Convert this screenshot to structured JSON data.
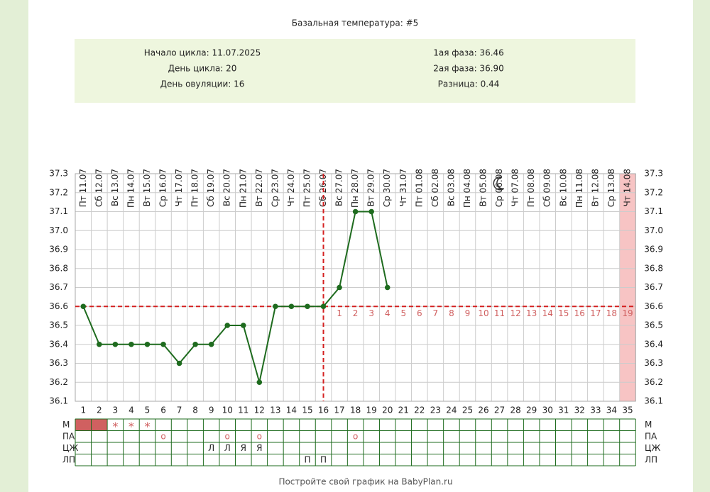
{
  "chart_data": {
    "type": "line",
    "title": "Базальная температура: #5",
    "summary_left": [
      "Начало цикла: 11.07.2025",
      "День цикла: 20",
      "День овуляции: 16"
    ],
    "summary_right": [
      "1ая фаза: 36.46",
      "2ая фаза: 36.90",
      "Разница: 0.44"
    ],
    "x": [
      1,
      2,
      3,
      4,
      5,
      6,
      7,
      8,
      9,
      10,
      11,
      12,
      13,
      14,
      15,
      16,
      17,
      18,
      19,
      20,
      21,
      22,
      23,
      24,
      25,
      26,
      27,
      28,
      29,
      30,
      31,
      32,
      33,
      34,
      35
    ],
    "xlim": [
      1,
      35
    ],
    "dates": [
      "Пт 11.07",
      "Сб 12.07",
      "Вс 13.07",
      "Пн 14.07",
      "Вт 15.07",
      "Ср 16.07",
      "Чт 17.07",
      "Пт 18.07",
      "Сб 19.07",
      "Вс 20.07",
      "Пн 21.07",
      "Вт 22.07",
      "Ср 23.07",
      "Чт 24.07",
      "Пт 25.07",
      "Сб 26.07",
      "Вс 27.07",
      "Пн 28.07",
      "Вт 29.07",
      "Ср 30.07",
      "Чт 31.07",
      "Пт 01.08",
      "Сб 02.08",
      "Вс 03.08",
      "Пн 04.08",
      "Вт 05.08",
      "Ср 06.08",
      "Чт 07.08",
      "Пт 08.08",
      "Сб 09.08",
      "Вс 10.08",
      "Пн 11.08",
      "Вт 12.08",
      "Ср 13.08",
      "Чт 14.08"
    ],
    "series": [
      {
        "color": "#1e6b1e",
        "values": [
          36.6,
          36.4,
          36.4,
          36.4,
          36.4,
          36.4,
          36.3,
          36.4,
          36.4,
          36.5,
          36.5,
          36.2,
          36.6,
          36.6,
          36.6,
          36.6,
          36.7,
          37.1,
          37.1,
          36.7,
          null,
          null,
          null,
          null,
          null,
          null,
          null,
          null,
          null,
          null,
          null,
          null,
          null,
          null,
          null
        ]
      }
    ],
    "ylim": [
      36.1,
      37.3
    ],
    "yticks": [
      36.1,
      36.2,
      36.3,
      36.4,
      36.5,
      36.6,
      36.7,
      36.8,
      36.9,
      {
        "value": 37,
        "label": "37.0"
      },
      37.1,
      37.2,
      37.3
    ],
    "grid": true,
    "coverline": 36.6,
    "ovulation_day": 16,
    "luteal_labels": [
      1,
      2,
      3,
      4,
      5,
      6,
      7,
      8,
      9,
      10,
      11,
      12,
      13,
      14,
      15,
      16,
      17,
      18,
      19
    ],
    "forecast_day": 35,
    "moon_day": 27,
    "period_days": [
      1,
      2
    ],
    "rows": [
      {
        "label": "М",
        "cells": [
          null,
          null,
          "*",
          "*",
          "*",
          null,
          null,
          null,
          null,
          null,
          null,
          null,
          null,
          null,
          null,
          null,
          null,
          null,
          null,
          null,
          null,
          null,
          null,
          null,
          null,
          null,
          null,
          null,
          null,
          null,
          null,
          null,
          null,
          null,
          null
        ]
      },
      {
        "label": "ПА",
        "cells": [
          null,
          null,
          null,
          null,
          null,
          "o",
          null,
          null,
          null,
          "o",
          null,
          "o",
          null,
          null,
          null,
          null,
          null,
          "o",
          null,
          null,
          null,
          null,
          null,
          null,
          null,
          null,
          null,
          null,
          null,
          null,
          null,
          null,
          null,
          null,
          null
        ]
      },
      {
        "label": "ЦЖ",
        "cells": [
          null,
          null,
          null,
          null,
          null,
          null,
          null,
          null,
          "Л",
          "Л",
          "Я",
          "Я",
          null,
          null,
          null,
          null,
          null,
          null,
          null,
          null,
          null,
          null,
          null,
          null,
          null,
          null,
          null,
          null,
          null,
          null,
          null,
          null,
          null,
          null,
          null
        ]
      },
      {
        "label": "ЛП",
        "cells": [
          null,
          null,
          null,
          null,
          null,
          null,
          null,
          null,
          null,
          null,
          null,
          null,
          null,
          null,
          "П",
          "П",
          null,
          null,
          null,
          null,
          null,
          null,
          null,
          null,
          null,
          null,
          null,
          null,
          null,
          null,
          null,
          null,
          null,
          null,
          null
        ]
      }
    ],
    "footer": "Постройте свой график на BabyPlan.ru"
  }
}
